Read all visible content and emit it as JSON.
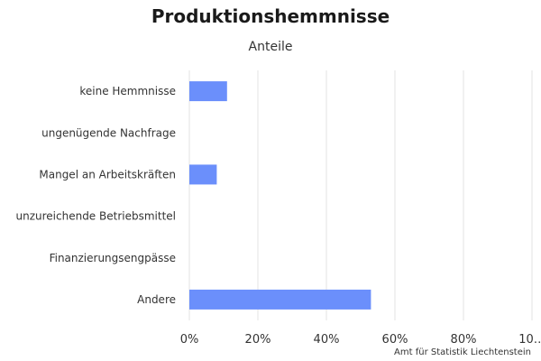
{
  "chart_data": {
    "type": "bar",
    "orientation": "horizontal",
    "title": "Produktionshemmnisse",
    "subtitle": "Anteile",
    "credit": "Amt für Statistik Liechtenstein",
    "categories": [
      "keine Hemmnisse",
      "ungenügende Nachfrage",
      "Mangel an Arbeitskräften",
      "unzureichende Betriebsmittel",
      "Finanzierungsengpässe",
      "Andere"
    ],
    "values": [
      11,
      0,
      8,
      0,
      0,
      53
    ],
    "xlim": [
      0,
      100
    ],
    "x_ticks": [
      "0%",
      "20%",
      "40%",
      "60%",
      "80%",
      "10…"
    ],
    "x_tick_values": [
      0,
      20,
      40,
      60,
      80,
      100
    ],
    "grid": "vertical",
    "legend": "none",
    "bar_color": "#6b8ffb"
  }
}
